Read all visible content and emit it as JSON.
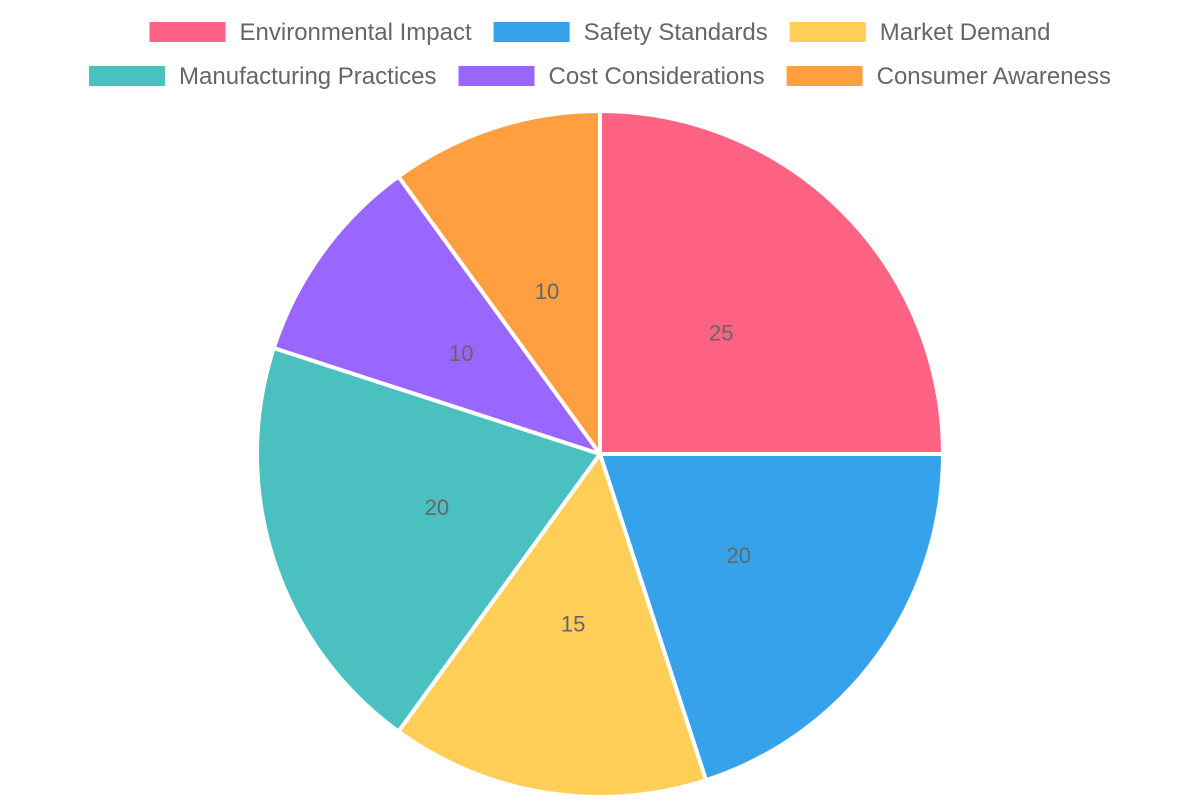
{
  "chart_data": {
    "type": "pie",
    "title": "",
    "categories": [
      "Environmental Impact",
      "Safety Standards",
      "Market Demand",
      "Manufacturing Practices",
      "Cost Considerations",
      "Consumer Awareness"
    ],
    "values": [
      25,
      20,
      15,
      20,
      10,
      10
    ],
    "colors": [
      "#ff6384",
      "#36a2eb",
      "#ffce56",
      "#4bc0c0",
      "#9966ff",
      "#ff9f40"
    ],
    "slice_border_color": "#ffffff",
    "label_color": "#666666",
    "legend_position": "top",
    "start_angle": "top (12 o'clock)",
    "direction": "clockwise"
  }
}
